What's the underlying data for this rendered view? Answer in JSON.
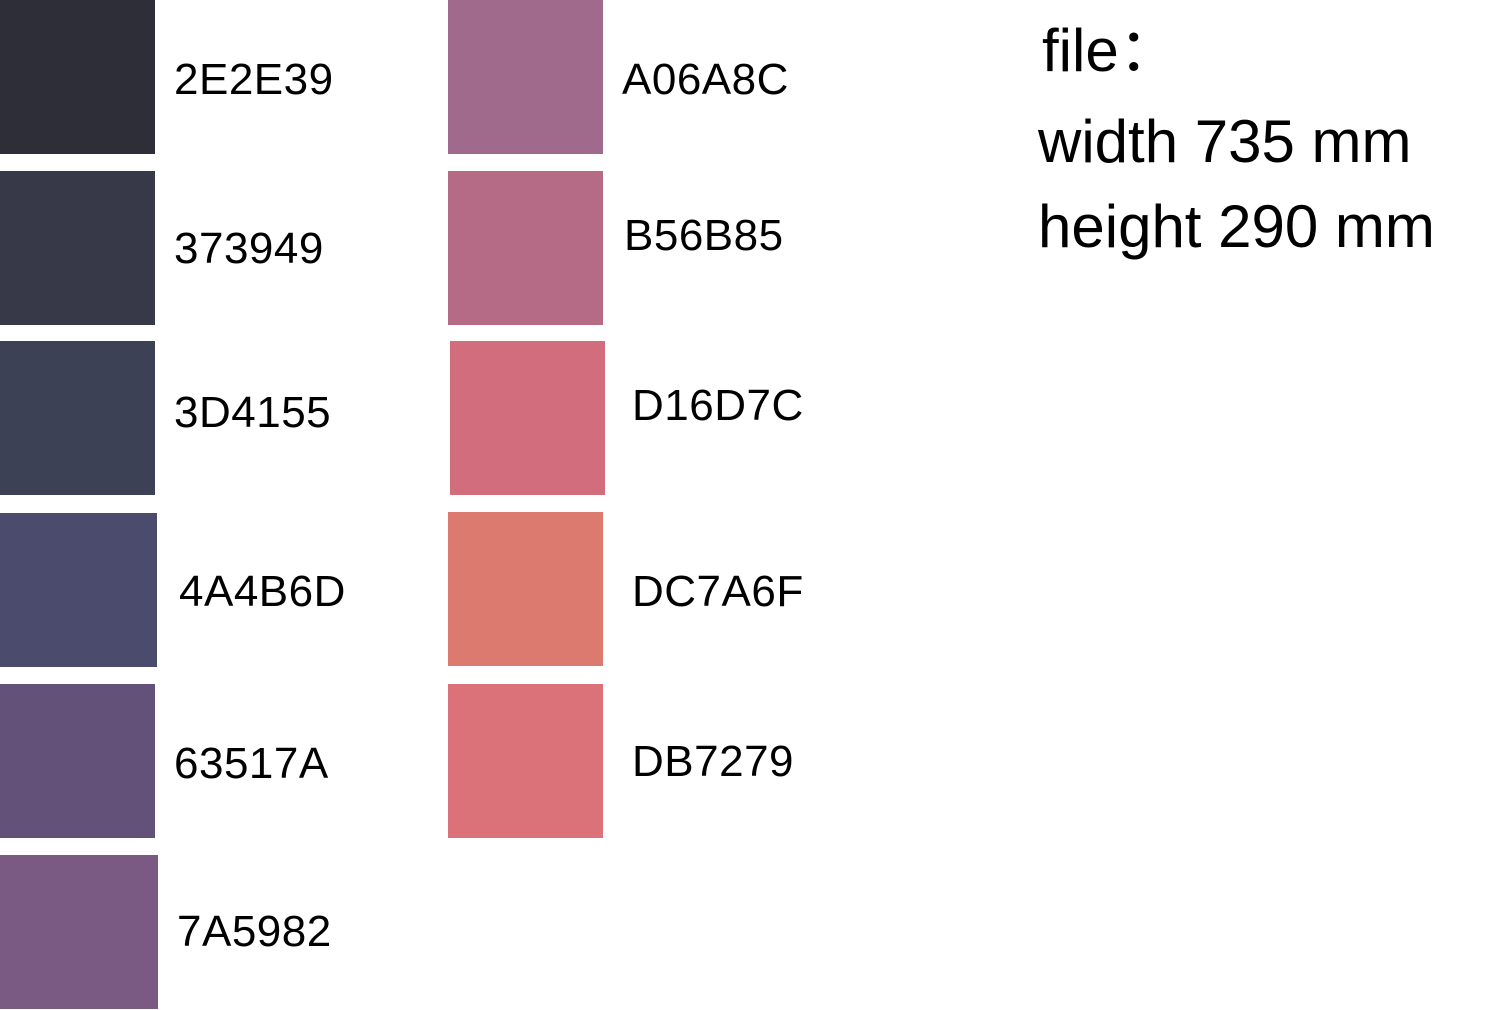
{
  "swatches": [
    {
      "code": "2E2E39",
      "color": "#2E2E39"
    },
    {
      "code": "373949",
      "color": "#373949"
    },
    {
      "code": "3D4155",
      "color": "#3D4155"
    },
    {
      "code": "4A4B6D",
      "color": "#4A4B6D"
    },
    {
      "code": "63517A",
      "color": "#63517A"
    },
    {
      "code": "7A5982",
      "color": "#7A5982"
    },
    {
      "code": "A06A8C",
      "color": "#A06A8C"
    },
    {
      "code": "B56B85",
      "color": "#B56B85"
    },
    {
      "code": "D16D7C",
      "color": "#D16D7C"
    },
    {
      "code": "DC7A6F",
      "color": "#DC7A6F"
    },
    {
      "code": "DB7279",
      "color": "#DB7279"
    }
  ],
  "file_info": {
    "title": "file：",
    "width": "width 735 mm",
    "height": "height 290 mm"
  }
}
